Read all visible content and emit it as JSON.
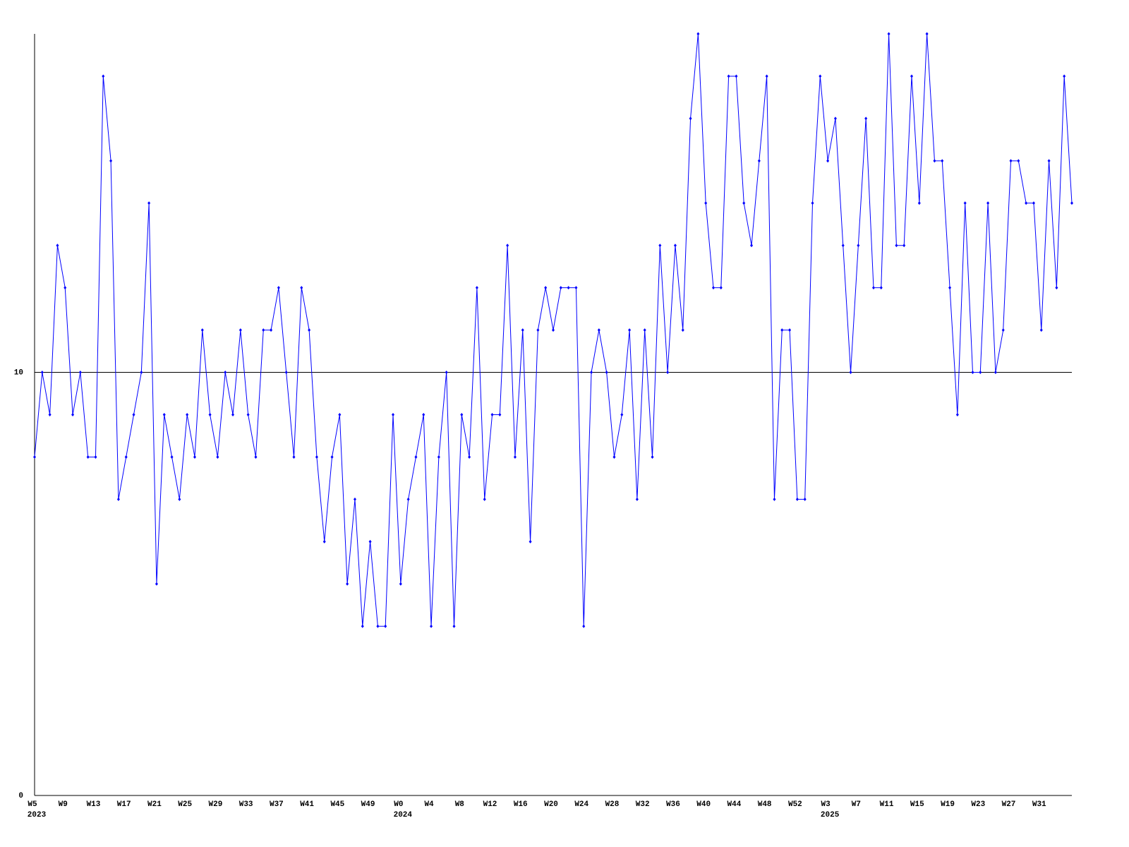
{
  "chart_data": {
    "type": "line",
    "categories": [
      "W5",
      null,
      null,
      null,
      "W9",
      null,
      null,
      null,
      "W13",
      null,
      null,
      null,
      "W17",
      null,
      null,
      null,
      "W21",
      null,
      null,
      null,
      "W25",
      null,
      null,
      null,
      "W29",
      null,
      null,
      null,
      "W33",
      null,
      null,
      null,
      "W37",
      null,
      null,
      null,
      "W41",
      null,
      null,
      null,
      "W45",
      null,
      null,
      null,
      "W49",
      null,
      null,
      null,
      "W0",
      null,
      null,
      null,
      "W4",
      null,
      null,
      null,
      "W8",
      null,
      null,
      null,
      "W12",
      null,
      null,
      null,
      "W16",
      null,
      null,
      null,
      "W20",
      null,
      null,
      null,
      "W24",
      null,
      null,
      null,
      "W28",
      null,
      null,
      null,
      "W32",
      null,
      null,
      null,
      "W36",
      null,
      null,
      null,
      "W40",
      null,
      null,
      null,
      "W44",
      null,
      null,
      null,
      "W48",
      null,
      null,
      null,
      "W52",
      null,
      null,
      null,
      "W3",
      null,
      null,
      null,
      "W7",
      null,
      null,
      null,
      "W11",
      null,
      null,
      null,
      "W15",
      null,
      null,
      null,
      "W19",
      null,
      null,
      null,
      "W23",
      null,
      null,
      null,
      "W27",
      null,
      null,
      null,
      "W31",
      null,
      null,
      null,
      null
    ],
    "years": [
      "2023",
      null,
      null,
      null,
      null,
      null,
      null,
      null,
      null,
      null,
      null,
      null,
      null,
      null,
      null,
      null,
      null,
      null,
      null,
      null,
      null,
      null,
      null,
      null,
      null,
      null,
      null,
      null,
      null,
      null,
      null,
      null,
      null,
      null,
      null,
      null,
      null,
      null,
      null,
      null,
      null,
      null,
      null,
      null,
      null,
      null,
      null,
      null,
      "2024",
      null,
      null,
      null,
      null,
      null,
      null,
      null,
      null,
      null,
      null,
      null,
      null,
      null,
      null,
      null,
      null,
      null,
      null,
      null,
      null,
      null,
      null,
      null,
      null,
      null,
      null,
      null,
      null,
      null,
      null,
      null,
      null,
      null,
      null,
      null,
      null,
      null,
      null,
      null,
      null,
      null,
      null,
      null,
      null,
      null,
      null,
      null,
      null,
      null,
      null,
      null,
      null,
      null,
      null,
      null,
      "2025",
      null,
      null,
      null,
      null,
      null,
      null,
      null,
      null,
      null,
      null,
      null,
      null,
      null,
      null,
      null,
      null,
      null,
      null,
      null,
      null,
      null,
      null,
      null,
      null,
      null,
      null,
      null,
      null,
      null,
      null,
      null
    ],
    "values": [
      8,
      10,
      9,
      13,
      12,
      9,
      10,
      8,
      8,
      17,
      15,
      7,
      8,
      9,
      10,
      14,
      5,
      9,
      8,
      7,
      9,
      8,
      11,
      9,
      8,
      10,
      9,
      11,
      9,
      8,
      11,
      11,
      12,
      10,
      8,
      12,
      11,
      8,
      6,
      8,
      9,
      5,
      7,
      4,
      6,
      4,
      4,
      9,
      5,
      7,
      8,
      9,
      4,
      8,
      10,
      4,
      9,
      8,
      12,
      7,
      9,
      9,
      13,
      8,
      11,
      6,
      11,
      12,
      11,
      12,
      12,
      12,
      4,
      10,
      11,
      10,
      8,
      9,
      11,
      7,
      11,
      8,
      13,
      10,
      13,
      11,
      16,
      18,
      14,
      12,
      12,
      17,
      17,
      14,
      13,
      15,
      17,
      7,
      11,
      11,
      7,
      7,
      14,
      17,
      15,
      16,
      13,
      10,
      13,
      16,
      12,
      12,
      18,
      13,
      13,
      17,
      14,
      18,
      15,
      15,
      12,
      9,
      14,
      10,
      10,
      14,
      10,
      11,
      15,
      15,
      14,
      14,
      11,
      15,
      12,
      17,
      14
    ],
    "color": "#0000ff",
    "ylim": [
      0,
      18
    ],
    "yticks": [
      0,
      10
    ],
    "grid": true
  }
}
